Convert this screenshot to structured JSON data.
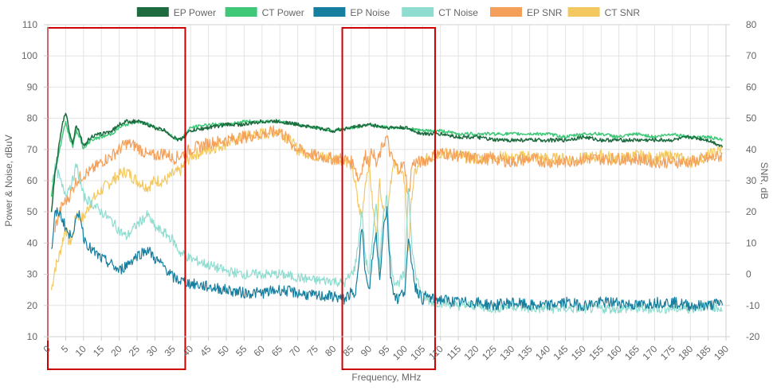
{
  "chart_data": {
    "type": "line",
    "xlabel": "Frequency, MHz",
    "ylabel_left": "Power & Noise, dBuV",
    "ylabel_right": "SNR, dB",
    "xlim": [
      0,
      190
    ],
    "ylim_left": [
      10,
      110
    ],
    "ylim_right": [
      -20,
      80
    ],
    "x_ticks": [
      0,
      5,
      10,
      15,
      20,
      25,
      30,
      35,
      40,
      45,
      50,
      55,
      60,
      65,
      70,
      75,
      80,
      85,
      90,
      95,
      100,
      105,
      110,
      115,
      120,
      125,
      130,
      135,
      140,
      145,
      150,
      155,
      160,
      165,
      170,
      175,
      180,
      185,
      190
    ],
    "y_ticks_left": [
      10,
      20,
      30,
      40,
      50,
      60,
      70,
      80,
      90,
      100,
      110
    ],
    "y_ticks_right": [
      -20,
      -10,
      0,
      10,
      20,
      30,
      40,
      50,
      60,
      70,
      80
    ],
    "grid": true,
    "legend_position": "top",
    "highlight_regions_x": [
      [
        0,
        38.5
      ],
      [
        82.5,
        108.5
      ]
    ],
    "highlight_color": "#cc0000",
    "series": [
      {
        "name": "EP Power",
        "axis": "left",
        "color": "#1e6b40",
        "x": [
          1,
          2,
          3,
          4,
          5,
          6,
          7,
          8,
          9,
          10,
          12,
          15,
          18,
          20,
          22,
          25,
          28,
          30,
          33,
          35,
          37,
          40,
          45,
          50,
          55,
          60,
          65,
          70,
          75,
          80,
          85,
          90,
          95,
          100,
          105,
          110,
          115,
          120,
          125,
          130,
          135,
          140,
          145,
          150,
          155,
          160,
          165,
          170,
          175,
          180,
          185,
          189
        ],
        "values": [
          50,
          62,
          70,
          78,
          82,
          76,
          72,
          78,
          75,
          71,
          74,
          75,
          76,
          78,
          79,
          79,
          78,
          77,
          76,
          74,
          73,
          76,
          77,
          78,
          78,
          79,
          79,
          78,
          77,
          76,
          77,
          78,
          77,
          77,
          75,
          75,
          74,
          74,
          73,
          73,
          73,
          73,
          73,
          74,
          73,
          73,
          73,
          73,
          73,
          74,
          73,
          71
        ]
      },
      {
        "name": "CT Power",
        "axis": "left",
        "color": "#3fc878",
        "x": [
          1,
          2,
          3,
          4,
          5,
          6,
          7,
          8,
          9,
          10,
          12,
          15,
          18,
          20,
          22,
          25,
          28,
          30,
          33,
          35,
          37,
          40,
          45,
          50,
          55,
          60,
          65,
          70,
          75,
          80,
          85,
          90,
          95,
          100,
          105,
          110,
          115,
          120,
          125,
          130,
          135,
          140,
          145,
          150,
          155,
          160,
          165,
          170,
          175,
          180,
          185,
          189
        ],
        "values": [
          55,
          63,
          68,
          74,
          79,
          74,
          71,
          76,
          74,
          70,
          73,
          74,
          75,
          77,
          78,
          79,
          78,
          77,
          76,
          74,
          73,
          77,
          78,
          78,
          79,
          79,
          79,
          78,
          77,
          76,
          77,
          78,
          77,
          77,
          76,
          76,
          75,
          75,
          75,
          75,
          75,
          75,
          74,
          75,
          75,
          74,
          75,
          74,
          75,
          74,
          74,
          73
        ]
      },
      {
        "name": "EP Noise",
        "axis": "left",
        "color": "#167e9e",
        "x": [
          1,
          2,
          3,
          4,
          5,
          6,
          7,
          8,
          9,
          10,
          12,
          15,
          18,
          20,
          22,
          25,
          28,
          30,
          33,
          35,
          37,
          40,
          45,
          50,
          55,
          60,
          65,
          70,
          75,
          80,
          83,
          85,
          86,
          87,
          88,
          89,
          90,
          91,
          92,
          93,
          94,
          95,
          96,
          97,
          98,
          100,
          101,
          102,
          103,
          105,
          106,
          108,
          110,
          115,
          120,
          125,
          130,
          135,
          140,
          145,
          150,
          155,
          160,
          165,
          170,
          175,
          180,
          185,
          189
        ],
        "values": [
          37,
          49,
          50,
          48,
          45,
          42,
          44,
          47,
          50,
          42,
          38,
          35,
          33,
          31,
          33,
          36,
          38,
          35,
          32,
          29,
          28,
          27,
          26,
          25,
          24,
          24,
          25,
          24,
          23,
          23,
          22,
          24,
          22,
          34,
          45,
          30,
          24,
          36,
          43,
          28,
          45,
          51,
          30,
          24,
          22,
          25,
          40,
          34,
          26,
          22,
          23,
          22,
          22,
          21,
          21,
          20,
          21,
          20,
          20,
          21,
          20,
          21,
          21,
          20,
          21,
          21,
          20,
          20,
          21
        ]
      },
      {
        "name": "CT Noise",
        "axis": "left",
        "color": "#8fdcd0",
        "x": [
          1,
          2,
          3,
          4,
          5,
          6,
          7,
          8,
          9,
          10,
          12,
          15,
          18,
          20,
          22,
          25,
          28,
          30,
          33,
          35,
          37,
          40,
          45,
          50,
          55,
          60,
          65,
          70,
          75,
          80,
          83,
          85,
          86,
          87,
          88,
          89,
          90,
          91,
          92,
          93,
          94,
          95,
          96,
          97,
          98,
          100,
          101,
          102,
          103,
          105,
          106,
          108,
          110,
          115,
          120,
          125,
          130,
          135,
          140,
          145,
          150,
          155,
          160,
          165,
          170,
          175,
          180,
          185,
          189
        ],
        "values": [
          60,
          64,
          62,
          58,
          56,
          58,
          60,
          65,
          60,
          55,
          53,
          50,
          47,
          44,
          42,
          46,
          49,
          45,
          43,
          41,
          37,
          35,
          33,
          31,
          30,
          30,
          30,
          29,
          28,
          28,
          27,
          30,
          32,
          40,
          51,
          35,
          30,
          42,
          52,
          33,
          50,
          55,
          35,
          28,
          27,
          30,
          58,
          40,
          30,
          23,
          22,
          21,
          21,
          20,
          20,
          19,
          20,
          19,
          19,
          19,
          19,
          19,
          19,
          19,
          19,
          19,
          19,
          20,
          19
        ]
      },
      {
        "name": "EP SNR",
        "axis": "right",
        "color": "#f5a05a",
        "x": [
          2,
          4,
          6,
          8,
          10,
          12,
          15,
          18,
          20,
          22,
          25,
          28,
          30,
          33,
          35,
          37,
          40,
          45,
          50,
          55,
          60,
          65,
          70,
          75,
          80,
          83,
          85,
          86,
          87,
          88,
          89,
          90,
          91,
          92,
          93,
          94,
          95,
          96,
          97,
          98,
          100,
          101,
          102,
          103,
          105,
          108,
          110,
          115,
          120,
          125,
          130,
          135,
          140,
          145,
          150,
          155,
          160,
          165,
          170,
          175,
          180,
          185,
          189
        ],
        "values": [
          15,
          22,
          25,
          30,
          32,
          33,
          36,
          38,
          40,
          42,
          41,
          38,
          38,
          39,
          37,
          38,
          40,
          42,
          43,
          44,
          45,
          46,
          40,
          38,
          37,
          37,
          36,
          35,
          30,
          34,
          38,
          36,
          40,
          35,
          38,
          42,
          44,
          38,
          36,
          34,
          35,
          24,
          35,
          36,
          36,
          38,
          39,
          38,
          37,
          37,
          36,
          37,
          36,
          36,
          37,
          37,
          37,
          37,
          36,
          36,
          36,
          37,
          38
        ]
      },
      {
        "name": "CT SNR",
        "axis": "right",
        "color": "#f3c860",
        "x": [
          1,
          2,
          3,
          4,
          5,
          6,
          7,
          8,
          9,
          10,
          12,
          15,
          18,
          20,
          22,
          25,
          28,
          30,
          33,
          35,
          37,
          40,
          45,
          50,
          55,
          60,
          65,
          70,
          75,
          80,
          83,
          85,
          86,
          87,
          88,
          89,
          90,
          91,
          92,
          93,
          94,
          95,
          96,
          97,
          98,
          100,
          101,
          102,
          103,
          105,
          108,
          110,
          115,
          120,
          125,
          130,
          135,
          140,
          145,
          150,
          155,
          160,
          165,
          170,
          175,
          180,
          185,
          189
        ],
        "values": [
          -5,
          2,
          5,
          10,
          15,
          10,
          12,
          20,
          18,
          18,
          23,
          27,
          30,
          32,
          33,
          30,
          28,
          30,
          30,
          32,
          33,
          38,
          40,
          42,
          44,
          45,
          46,
          40,
          38,
          37,
          37,
          35,
          30,
          22,
          18,
          30,
          36,
          22,
          12,
          30,
          20,
          18,
          30,
          35,
          34,
          30,
          8,
          26,
          33,
          36,
          38,
          39,
          38,
          37,
          38,
          37,
          38,
          37,
          37,
          37,
          38,
          37,
          38,
          37,
          38,
          36,
          38,
          40
        ]
      }
    ]
  }
}
